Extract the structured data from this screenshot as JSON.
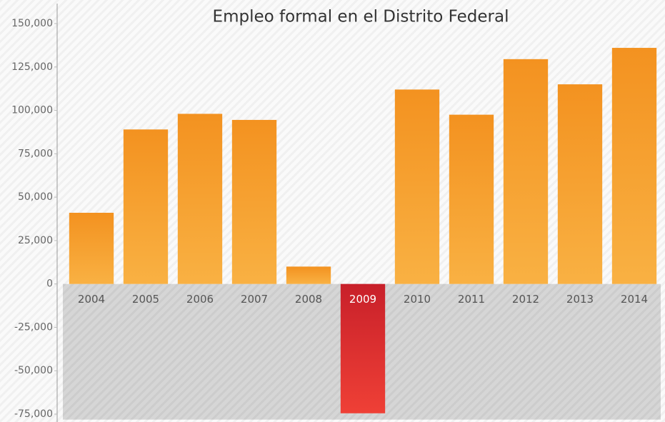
{
  "chart_data": {
    "type": "bar",
    "title": "Empleo formal en el Distrito Federal",
    "categories": [
      "2004",
      "2005",
      "2006",
      "2007",
      "2008",
      "2009",
      "2010",
      "2011",
      "2012",
      "2013",
      "2014"
    ],
    "values": [
      41000,
      89000,
      98000,
      94500,
      10000,
      -74500,
      112000,
      97500,
      129500,
      115000,
      136000
    ],
    "color": "#f6a02e",
    "negative_color": "#d9272e",
    "ylim": [
      -75000,
      150000
    ],
    "yticks": [
      {
        "value": 150000,
        "label": "150,000"
      },
      {
        "value": 125000,
        "label": "125,000"
      },
      {
        "value": 100000,
        "label": "100,000"
      },
      {
        "value": 75000,
        "label": "75,000"
      },
      {
        "value": 50000,
        "label": "50,000"
      },
      {
        "value": 25000,
        "label": "25,000"
      },
      0,
      {
        "value": -25000,
        "label": "-25,000"
      },
      {
        "value": -50000,
        "label": "-50,000"
      },
      {
        "value": -75000,
        "label": "-75,000"
      }
    ]
  }
}
